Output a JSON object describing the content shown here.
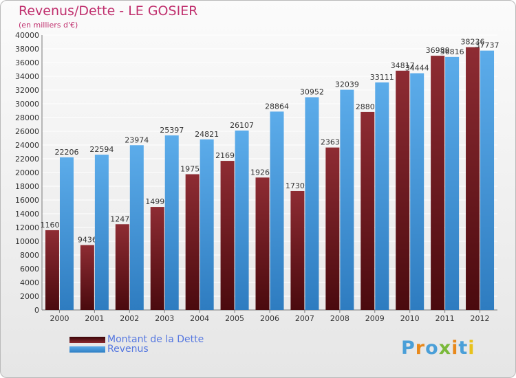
{
  "title": "Revenus/Dette - LE GOSIER",
  "subtitle": "(en milliers d'€)",
  "brand": "Proxiti",
  "colors": {
    "dette": "#7a1f24",
    "revenus": "#4d9de0",
    "title": "#c0306e",
    "legend_text": "#5577e0"
  },
  "chart_data": {
    "type": "bar",
    "categories": [
      "2000",
      "2001",
      "2002",
      "2003",
      "2004",
      "2005",
      "2006",
      "2007",
      "2008",
      "2009",
      "2010",
      "2011",
      "2012"
    ],
    "series": [
      {
        "name": "Montant de la Dette",
        "values": [
          11608,
          9436,
          12474,
          14992,
          19751,
          21693,
          19268,
          17305,
          23637,
          28808,
          34817,
          36989,
          38236
        ],
        "labels": [
          "11608",
          "9436",
          "12474",
          "14992",
          "19751",
          "21693",
          "19268",
          "17305",
          "23637",
          "28808",
          "34817",
          "36989",
          "38236"
        ]
      },
      {
        "name": "Revenus",
        "values": [
          22206,
          22594,
          23974,
          25397,
          24821,
          26107,
          28864,
          30952,
          32039,
          33111,
          34444,
          36816,
          37737
        ],
        "labels": [
          "22206",
          "22594",
          "23974",
          "25397",
          "24821",
          "26107",
          "28864",
          "30952",
          "32039",
          "33111",
          "34444",
          "36816",
          "37737"
        ]
      }
    ],
    "ylim": [
      0,
      40000
    ],
    "yticks": [
      0,
      2000,
      4000,
      6000,
      8000,
      10000,
      12000,
      14000,
      16000,
      18000,
      20000,
      22000,
      24000,
      26000,
      28000,
      30000,
      32000,
      34000,
      36000,
      38000,
      40000
    ],
    "grid": true,
    "legend_position": "bottom-left"
  }
}
